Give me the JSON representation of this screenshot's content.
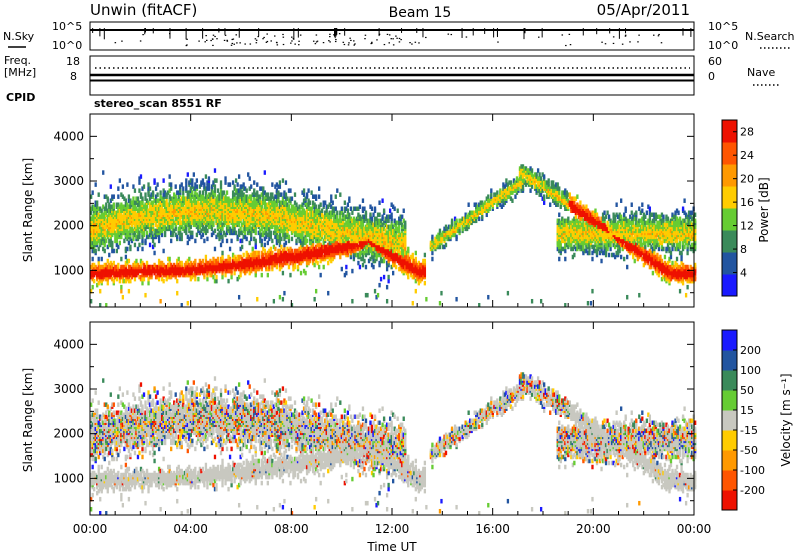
{
  "header": {
    "station": "Unwin (fitACF)",
    "beam": "Beam 15",
    "date": "05/Apr/2011"
  },
  "noise_panel": {
    "left_label": "N.Sky",
    "right_label": "N.Search",
    "left_ticks": [
      "10^5",
      "10^0"
    ],
    "right_ticks": [
      "10^5",
      "10^0"
    ]
  },
  "freq_panel": {
    "left_label_1": "Freq.",
    "left_label_2": "[MHz]",
    "left_ticks": [
      "18",
      "8"
    ],
    "right_label": "Nave",
    "right_ticks": [
      "60",
      "0"
    ]
  },
  "cpid_panel": {
    "left_label": "CPID",
    "program": "stereo_scan 8551 RF"
  },
  "colors": {
    "power": [
      "#1a1aff",
      "#2255a0",
      "#3a8a5a",
      "#66cc33",
      "#ffcc00",
      "#ff9900",
      "#ff5500",
      "#ee1100"
    ],
    "velocity": [
      "#ee1100",
      "#ff5500",
      "#ff9900",
      "#ffcc00",
      "#c8c8c0",
      "#66cc33",
      "#3a8a5a",
      "#2255a0",
      "#1a1aff"
    ],
    "gs": "#c8c8c0"
  },
  "chart_data": [
    {
      "type": "heatmap",
      "title": "",
      "ylabel": "Slant Range [km]",
      "xlabel": "",
      "x_ticks": [
        "00:00",
        "04:00",
        "08:00",
        "12:00",
        "16:00",
        "20:00",
        "00:00"
      ],
      "x_range_hours": [
        0,
        24
      ],
      "y_ticks": [
        1000,
        2000,
        3000,
        4000
      ],
      "ylim": [
        180,
        4500
      ],
      "colorbar": {
        "label": "Power [dB]",
        "ticks": [
          4,
          8,
          12,
          16,
          20,
          24,
          28
        ],
        "range": [
          0,
          30
        ]
      }
    },
    {
      "type": "heatmap",
      "title": "",
      "ylabel": "Slant Range [km]",
      "xlabel": "Time UT",
      "x_ticks": [
        "00:00",
        "04:00",
        "08:00",
        "12:00",
        "16:00",
        "20:00",
        "00:00"
      ],
      "x_range_hours": [
        0,
        24
      ],
      "y_ticks": [
        1000,
        2000,
        3000,
        4000
      ],
      "ylim": [
        180,
        4500
      ],
      "colorbar": {
        "label": "Velocity [m s⁻¹]",
        "ticks": [
          200,
          100,
          50,
          15,
          -15,
          -50,
          -100,
          -200
        ]
      }
    }
  ]
}
